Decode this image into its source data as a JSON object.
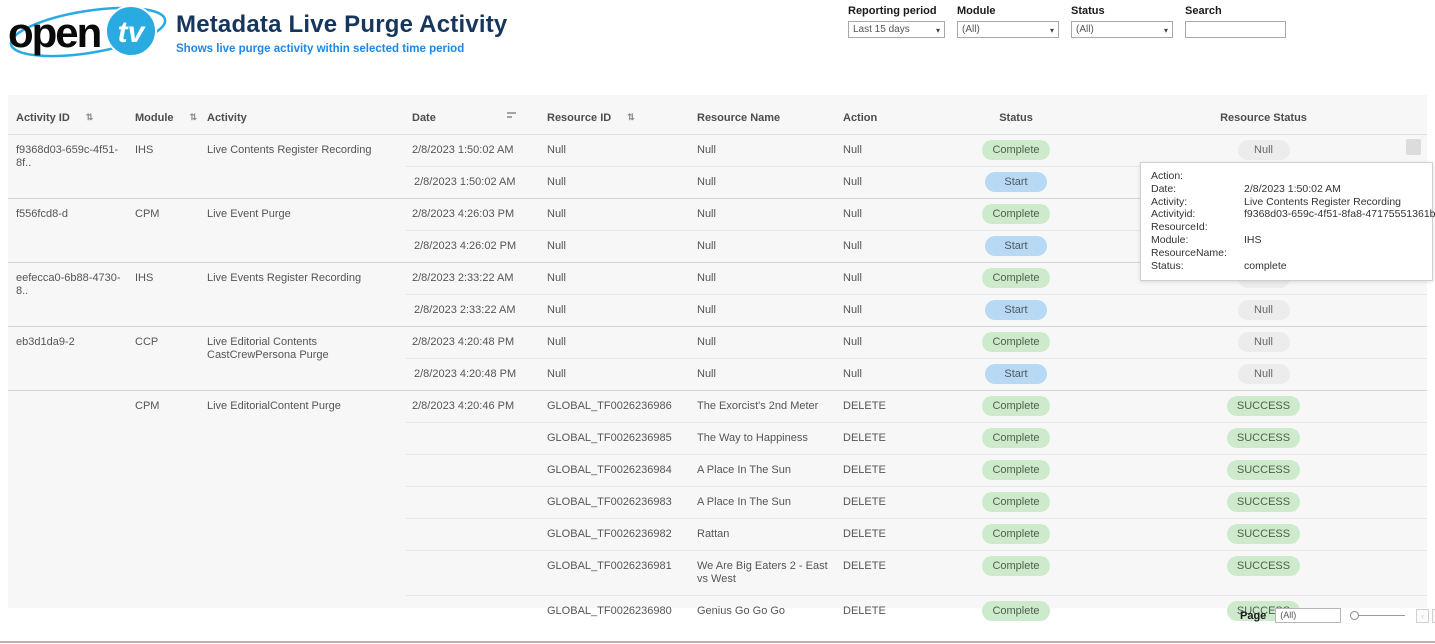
{
  "brand": {
    "logo_text_open": "open",
    "logo_text_tv": "tv"
  },
  "header": {
    "title": "Metadata Live Purge Activity",
    "subtitle": "Shows live purge activity within selected time period"
  },
  "filters": {
    "reporting_period": {
      "label": "Reporting period",
      "value": "Last 15 days"
    },
    "module": {
      "label": "Module",
      "value": "(All)"
    },
    "status": {
      "label": "Status",
      "value": "(All)"
    },
    "search": {
      "label": "Search",
      "value": ""
    }
  },
  "table": {
    "columns": [
      {
        "label": "Activity ID",
        "icon": "filter-sort-icon"
      },
      {
        "label": "Module",
        "icon": "filter-sort-icon"
      },
      {
        "label": "Activity"
      },
      {
        "label": "Date",
        "icon": "sort-icon"
      },
      {
        "label": "Resource ID",
        "icon": "filter-sort-icon"
      },
      {
        "label": "Resource Name"
      },
      {
        "label": "Action"
      },
      {
        "label": "Status",
        "align": "center"
      },
      {
        "label": "Resource Status",
        "align": "center"
      }
    ],
    "groups": [
      {
        "activity_id": "f9368d03-659c-4f51-8f..",
        "module": "IHS",
        "activity": "Live Contents Register Recording",
        "rows": [
          {
            "date": "2/8/2023 1:50:02 AM",
            "resource_id": "Null",
            "resource_name": "Null",
            "action": "Null",
            "status": "Complete",
            "resource_status": "Null"
          },
          {
            "date": "2/8/2023 1:50:02 AM",
            "resource_id": "Null",
            "resource_name": "Null",
            "action": "Null",
            "status": "Start",
            "resource_status": "Null"
          }
        ]
      },
      {
        "activity_id": "f556fcd8-d",
        "module": "CPM",
        "activity": "Live Event Purge",
        "rows": [
          {
            "date": "2/8/2023 4:26:03 PM",
            "resource_id": "Null",
            "resource_name": "Null",
            "action": "Null",
            "status": "Complete",
            "resource_status": "Null"
          },
          {
            "date": "2/8/2023 4:26:02 PM",
            "resource_id": "Null",
            "resource_name": "Null",
            "action": "Null",
            "status": "Start",
            "resource_status": "Null"
          }
        ]
      },
      {
        "activity_id": "eefecca0-6b88-4730-8..",
        "module": "IHS",
        "activity": "Live Events Register Recording",
        "rows": [
          {
            "date": "2/8/2023 2:33:22 AM",
            "resource_id": "Null",
            "resource_name": "Null",
            "action": "Null",
            "status": "Complete",
            "resource_status": "Null"
          },
          {
            "date": "2/8/2023 2:33:22 AM",
            "resource_id": "Null",
            "resource_name": "Null",
            "action": "Null",
            "status": "Start",
            "resource_status": "Null"
          }
        ]
      },
      {
        "activity_id": "eb3d1da9-2",
        "module": "CCP",
        "activity": "Live Editorial Contents CastCrewPersona Purge",
        "rows": [
          {
            "date": "2/8/2023 4:20:48 PM",
            "resource_id": "Null",
            "resource_name": "Null",
            "action": "Null",
            "status": "Complete",
            "resource_status": "Null"
          },
          {
            "date": "2/8/2023 4:20:48 PM",
            "resource_id": "Null",
            "resource_name": "Null",
            "action": "Null",
            "status": "Start",
            "resource_status": "Null"
          }
        ]
      },
      {
        "activity_id": "",
        "module": "CPM",
        "activity": "Live EditorialContent Purge",
        "rows": [
          {
            "date": "2/8/2023 4:20:46 PM",
            "resource_id": "GLOBAL_TF0026236986",
            "resource_name": "The Exorcist's 2nd Meter",
            "action": "DELETE",
            "status": "Complete",
            "resource_status": "SUCCESS"
          },
          {
            "date": "",
            "resource_id": "GLOBAL_TF0026236985",
            "resource_name": "The Way to Happiness",
            "action": "DELETE",
            "status": "Complete",
            "resource_status": "SUCCESS"
          },
          {
            "date": "",
            "resource_id": "GLOBAL_TF0026236984",
            "resource_name": "A Place In The Sun",
            "action": "DELETE",
            "status": "Complete",
            "resource_status": "SUCCESS"
          },
          {
            "date": "",
            "resource_id": "GLOBAL_TF0026236983",
            "resource_name": "A Place In The Sun",
            "action": "DELETE",
            "status": "Complete",
            "resource_status": "SUCCESS"
          },
          {
            "date": "",
            "resource_id": "GLOBAL_TF0026236982",
            "resource_name": "Rattan",
            "action": "DELETE",
            "status": "Complete",
            "resource_status": "SUCCESS"
          },
          {
            "date": "",
            "resource_id": "GLOBAL_TF0026236981",
            "resource_name": "We Are Big Eaters 2 - East vs West",
            "action": "DELETE",
            "status": "Complete",
            "resource_status": "SUCCESS"
          },
          {
            "date": "",
            "resource_id": "GLOBAL_TF0026236980",
            "resource_name": "Genius Go Go Go",
            "action": "DELETE",
            "status": "Complete",
            "resource_status": "SUCCESS"
          }
        ]
      }
    ]
  },
  "tooltip": {
    "fields": [
      {
        "label": "Action:",
        "value": ""
      },
      {
        "label": "Date:",
        "value": "2/8/2023 1:50:02 AM"
      },
      {
        "label": "Activity:",
        "value": "Live Contents Register Recording"
      },
      {
        "label": "Activityid:",
        "value": "f9368d03-659c-4f51-8fa8-47175551361b"
      },
      {
        "label": "ResourceId:",
        "value": ""
      },
      {
        "label": "Module:",
        "value": "IHS"
      },
      {
        "label": "ResourceName:",
        "value": ""
      },
      {
        "label": "Status:",
        "value": "complete"
      }
    ]
  },
  "pagination": {
    "label": "Page",
    "value": "(All)",
    "prev": "‹",
    "next": "›"
  },
  "colors": {
    "title": "#17365d",
    "subtitle": "#1e88e5",
    "logo_blue": "#29abe2",
    "card_bg": "#f7f7f7",
    "complete_bg": "#cdebcc",
    "start_bg": "#b7d9f4",
    "null_bg": "#ececec",
    "success_bg": "#cdebcc"
  }
}
